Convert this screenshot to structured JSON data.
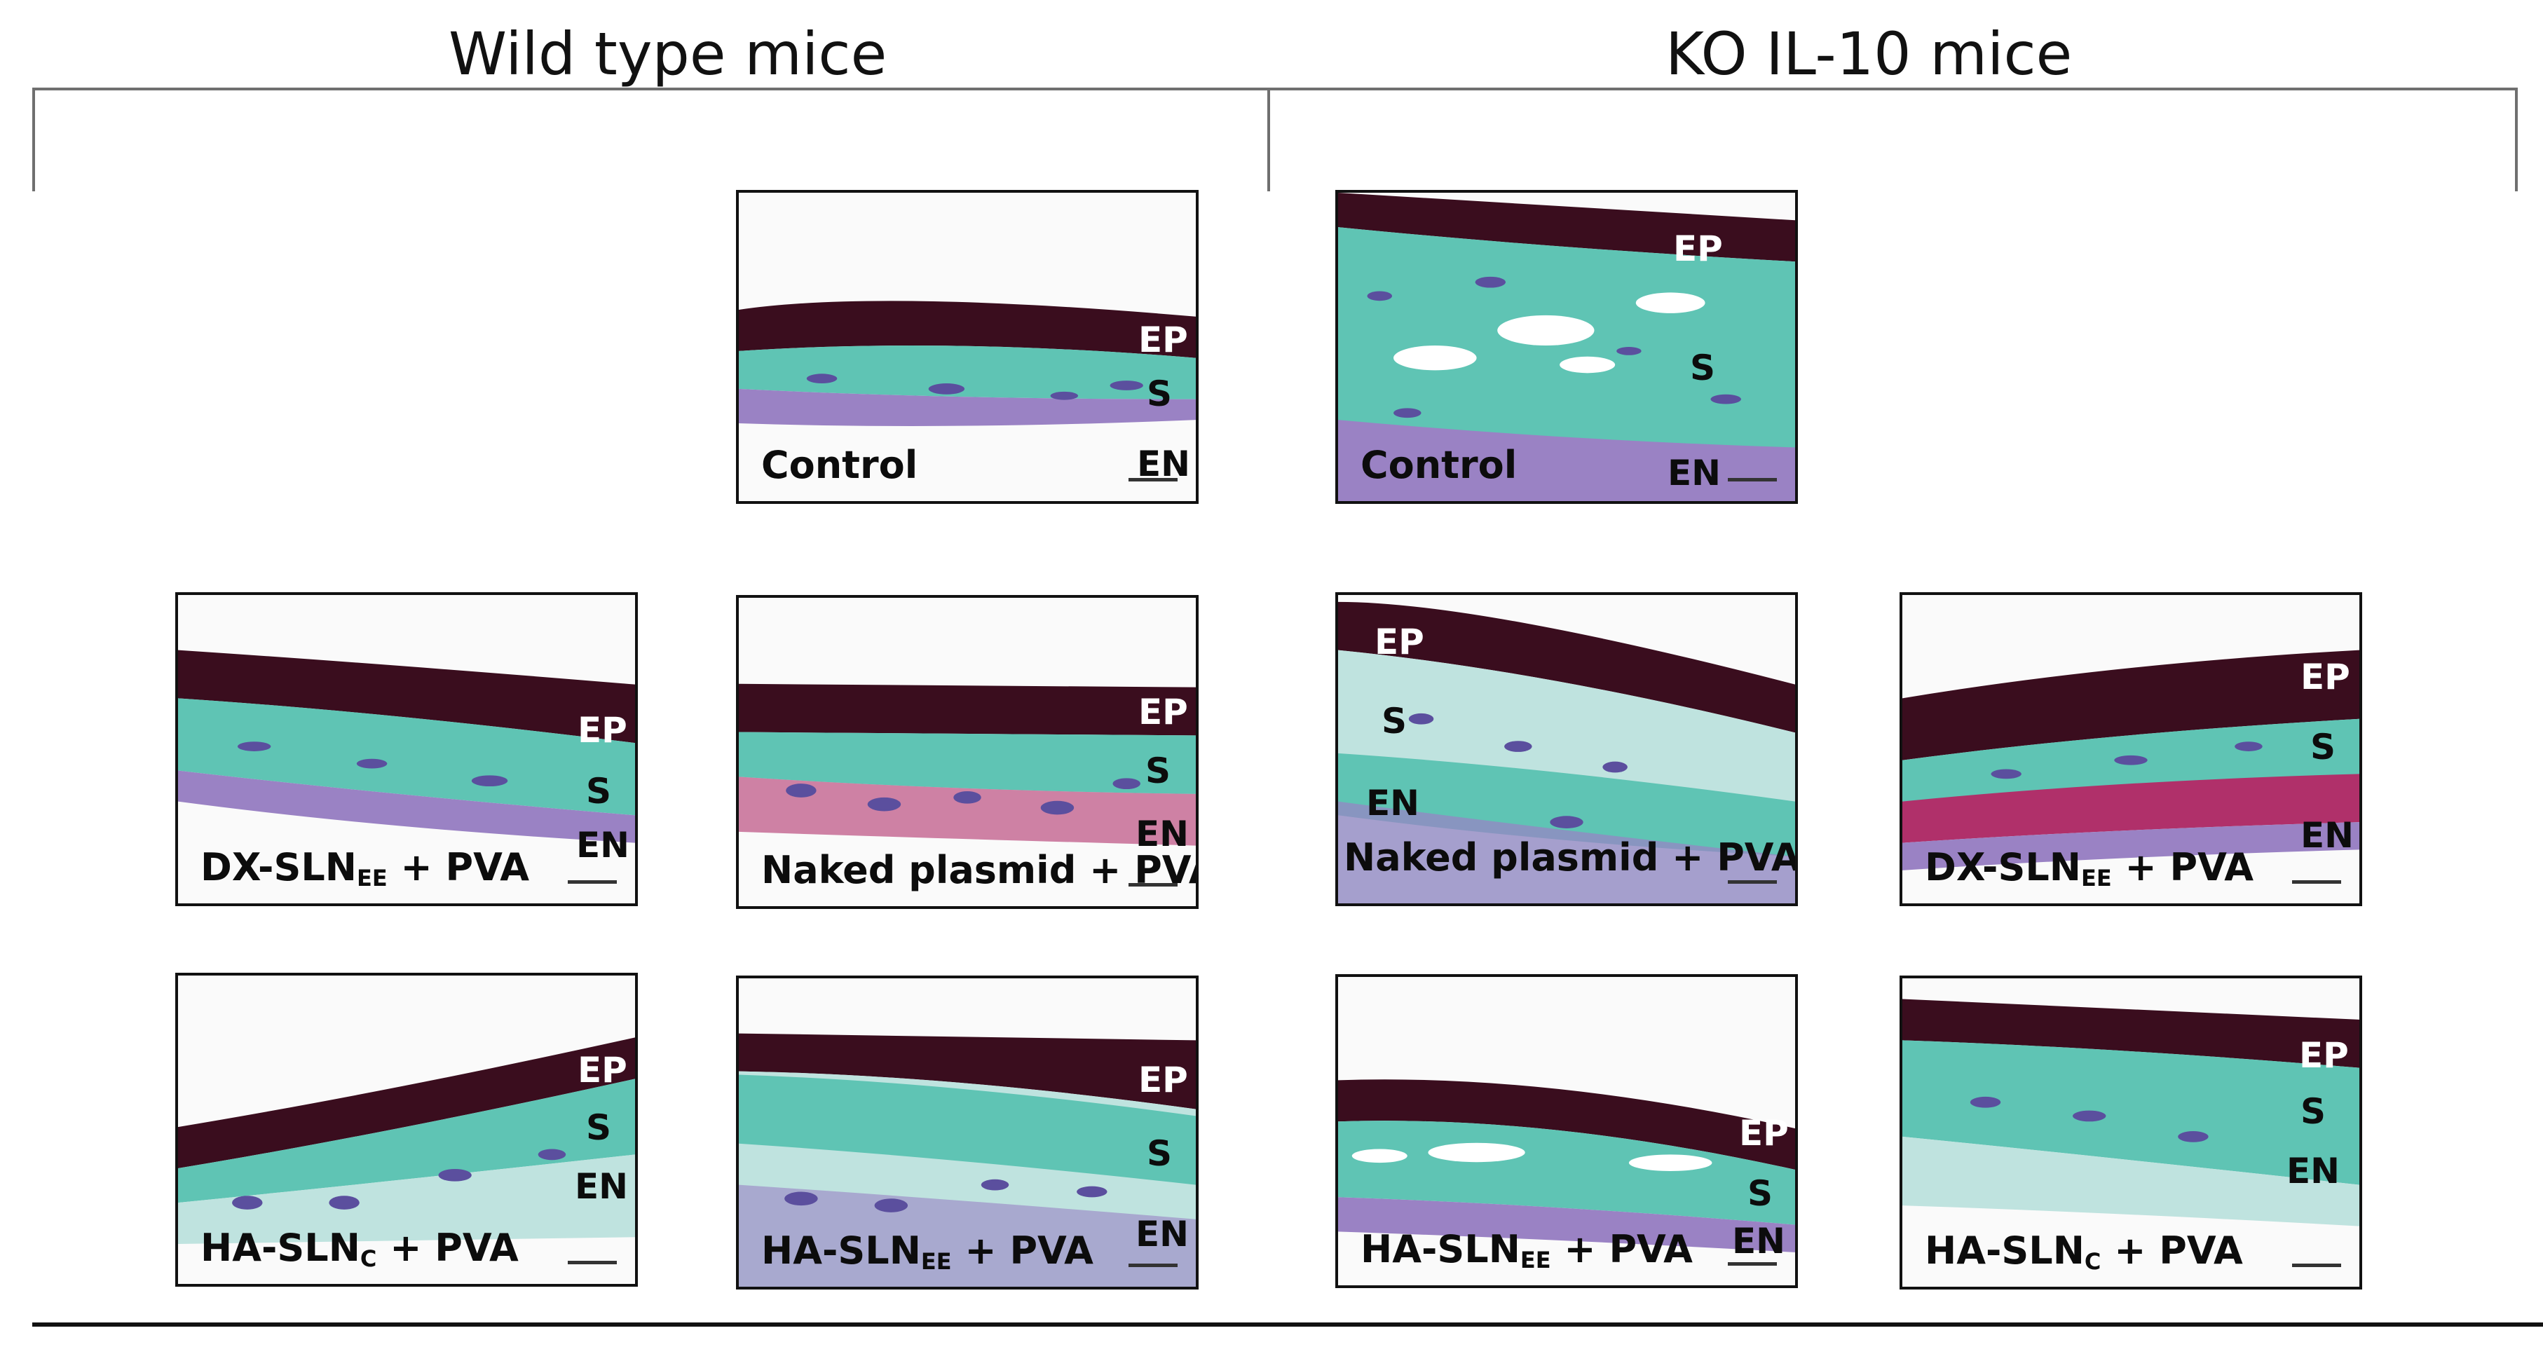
{
  "figure": {
    "groups": [
      {
        "id": "wt",
        "title": "Wild type mice"
      },
      {
        "id": "ko",
        "title": "KO IL-10 mice"
      }
    ],
    "layer_labels": {
      "epithelium": "EP",
      "stroma": "S",
      "endothelium": "EN"
    },
    "panels": [
      {
        "id": "wt-control",
        "group": "wt",
        "condition": {
          "main": "Control",
          "sub": "",
          "tail": ""
        }
      },
      {
        "id": "ko-control",
        "group": "ko",
        "condition": {
          "main": "Control",
          "sub": "",
          "tail": ""
        }
      },
      {
        "id": "wt-dx-sln-ee",
        "group": "wt",
        "condition": {
          "main": "DX-SLN",
          "sub": "EE",
          "tail": " + PVA"
        }
      },
      {
        "id": "wt-naked-plasmid",
        "group": "wt",
        "condition": {
          "main": "Naked plasmid + PVA",
          "sub": "",
          "tail": ""
        }
      },
      {
        "id": "ko-naked-plasmid",
        "group": "ko",
        "condition": {
          "main": "Naked plasmid + PVA",
          "sub": "",
          "tail": ""
        }
      },
      {
        "id": "ko-dx-sln-ee",
        "group": "ko",
        "condition": {
          "main": "DX-SLN",
          "sub": "EE",
          "tail": " + PVA"
        }
      },
      {
        "id": "wt-ha-sln-c",
        "group": "wt",
        "condition": {
          "main": "HA-SLN",
          "sub": "C",
          "tail": " + PVA"
        }
      },
      {
        "id": "wt-ha-sln-ee",
        "group": "wt",
        "condition": {
          "main": "HA-SLN",
          "sub": "EE",
          "tail": " + PVA"
        }
      },
      {
        "id": "ko-ha-sln-ee",
        "group": "ko",
        "condition": {
          "main": "HA-SLN",
          "sub": "EE",
          "tail": " + PVA"
        }
      },
      {
        "id": "ko-ha-sln-c",
        "group": "ko",
        "condition": {
          "main": "HA-SLN",
          "sub": "C",
          "tail": " + PVA"
        }
      }
    ],
    "colors": {
      "epithelium": "#3a0d1e",
      "stroma": "#5fc4b4",
      "stroma_pale": "#bfe3df",
      "nuclei": "#5b4f9e",
      "endothelium": "#9a82c4",
      "magenta": "#b0306a"
    }
  }
}
